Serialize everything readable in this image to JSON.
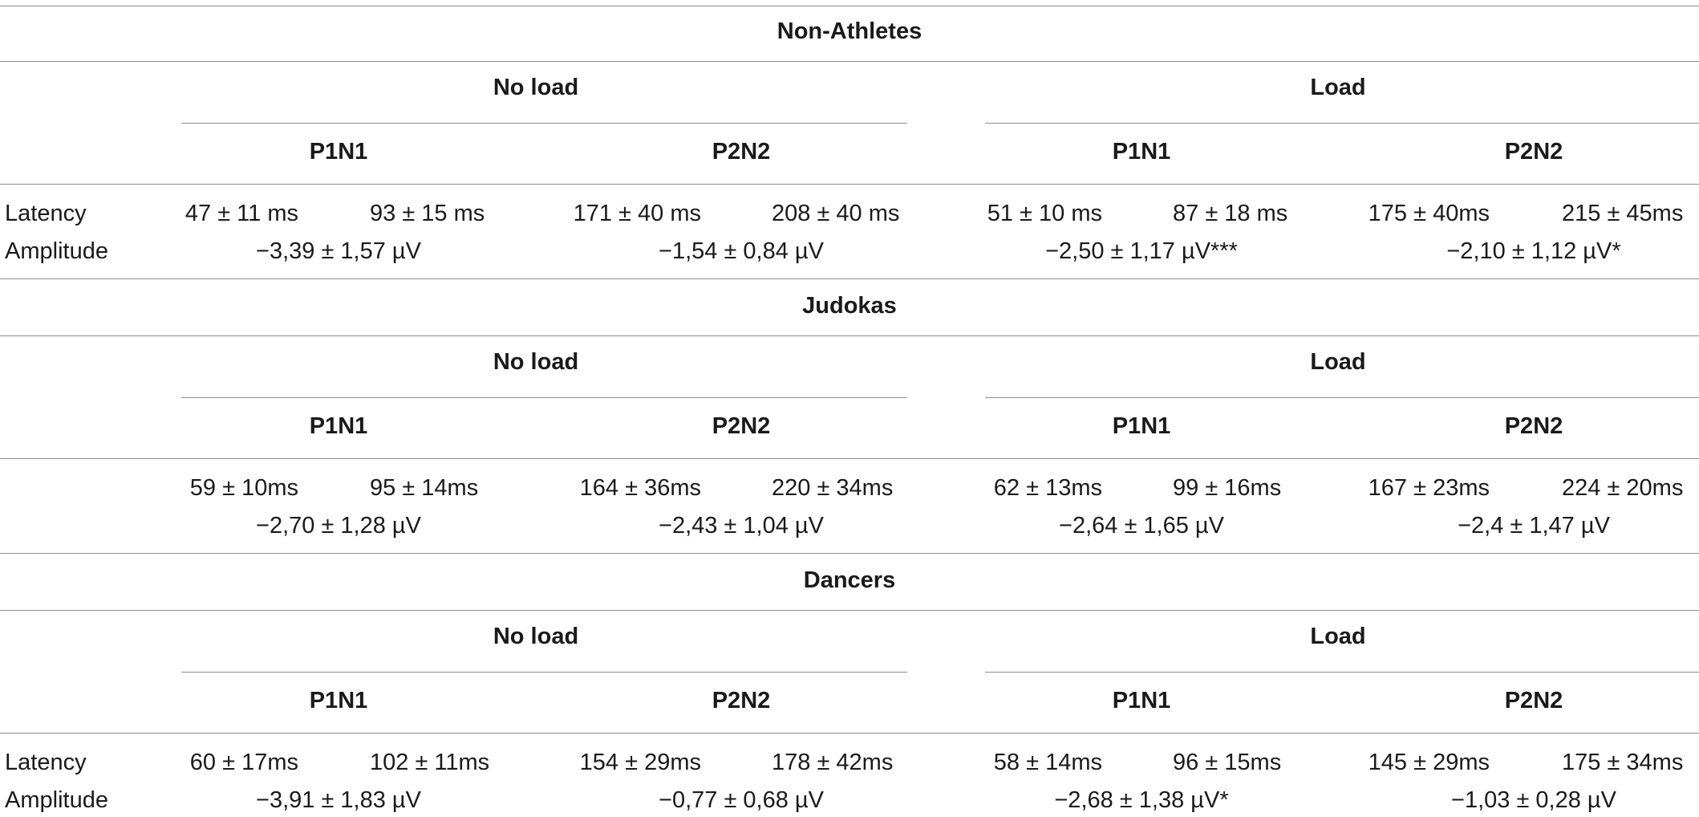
{
  "row_labels": {
    "latency": "Latency",
    "amplitude": "Amplitude"
  },
  "groups": [
    {
      "name": "Non-Athletes",
      "show_row_labels": true,
      "conditions": [
        {
          "label": "No load",
          "components": [
            {
              "label": "P1N1",
              "latency_first": "47 ± 11 ms",
              "latency_second": "93 ± 15 ms",
              "amplitude": "−3,39 ± 1,57 µV"
            },
            {
              "label": "P2N2",
              "latency_first": "171 ± 40 ms",
              "latency_second": "208 ± 40 ms",
              "amplitude": "−1,54 ± 0,84 µV"
            }
          ]
        },
        {
          "label": "Load",
          "components": [
            {
              "label": "P1N1",
              "latency_first": "51 ± 10 ms",
              "latency_second": "87 ± 18 ms",
              "amplitude": "−2,50 ± 1,17 µV***"
            },
            {
              "label": "P2N2",
              "latency_first": "175 ± 40ms",
              "latency_second": "215 ± 45ms",
              "amplitude": "−2,10 ± 1,12 µV*"
            }
          ]
        }
      ]
    },
    {
      "name": "Judokas",
      "show_row_labels": false,
      "conditions": [
        {
          "label": "No load",
          "components": [
            {
              "label": "P1N1",
              "latency_first": "59 ± 10ms",
              "latency_second": "95 ± 14ms",
              "amplitude": "−2,70 ± 1,28 µV"
            },
            {
              "label": "P2N2",
              "latency_first": "164 ± 36ms",
              "latency_second": "220 ± 34ms",
              "amplitude": "−2,43 ± 1,04 µV"
            }
          ]
        },
        {
          "label": "Load",
          "components": [
            {
              "label": "P1N1",
              "latency_first": "62 ± 13ms",
              "latency_second": "99 ± 16ms",
              "amplitude": "−2,64 ± 1,65 µV"
            },
            {
              "label": "P2N2",
              "latency_first": "167 ± 23ms",
              "latency_second": "224 ± 20ms",
              "amplitude": "−2,4 ± 1,47 µV"
            }
          ]
        }
      ]
    },
    {
      "name": "Dancers",
      "show_row_labels": true,
      "conditions": [
        {
          "label": "No load",
          "components": [
            {
              "label": "P1N1",
              "latency_first": "60 ± 17ms",
              "latency_second": "102 ± 11ms",
              "amplitude": "−3,91 ± 1,83 µV"
            },
            {
              "label": "P2N2",
              "latency_first": "154 ± 29ms",
              "latency_second": "178 ± 42ms",
              "amplitude": "−0,77 ± 0,68 µV"
            }
          ]
        },
        {
          "label": "Load",
          "components": [
            {
              "label": "P1N1",
              "latency_first": "58 ± 14ms",
              "latency_second": "96 ± 15ms",
              "amplitude": "−2,68 ± 1,38 µV*"
            },
            {
              "label": "P2N2",
              "latency_first": "145 ± 29ms",
              "latency_second": "175 ± 34ms",
              "amplitude": "−1,03 ± 0,28 µV"
            }
          ]
        }
      ]
    }
  ]
}
